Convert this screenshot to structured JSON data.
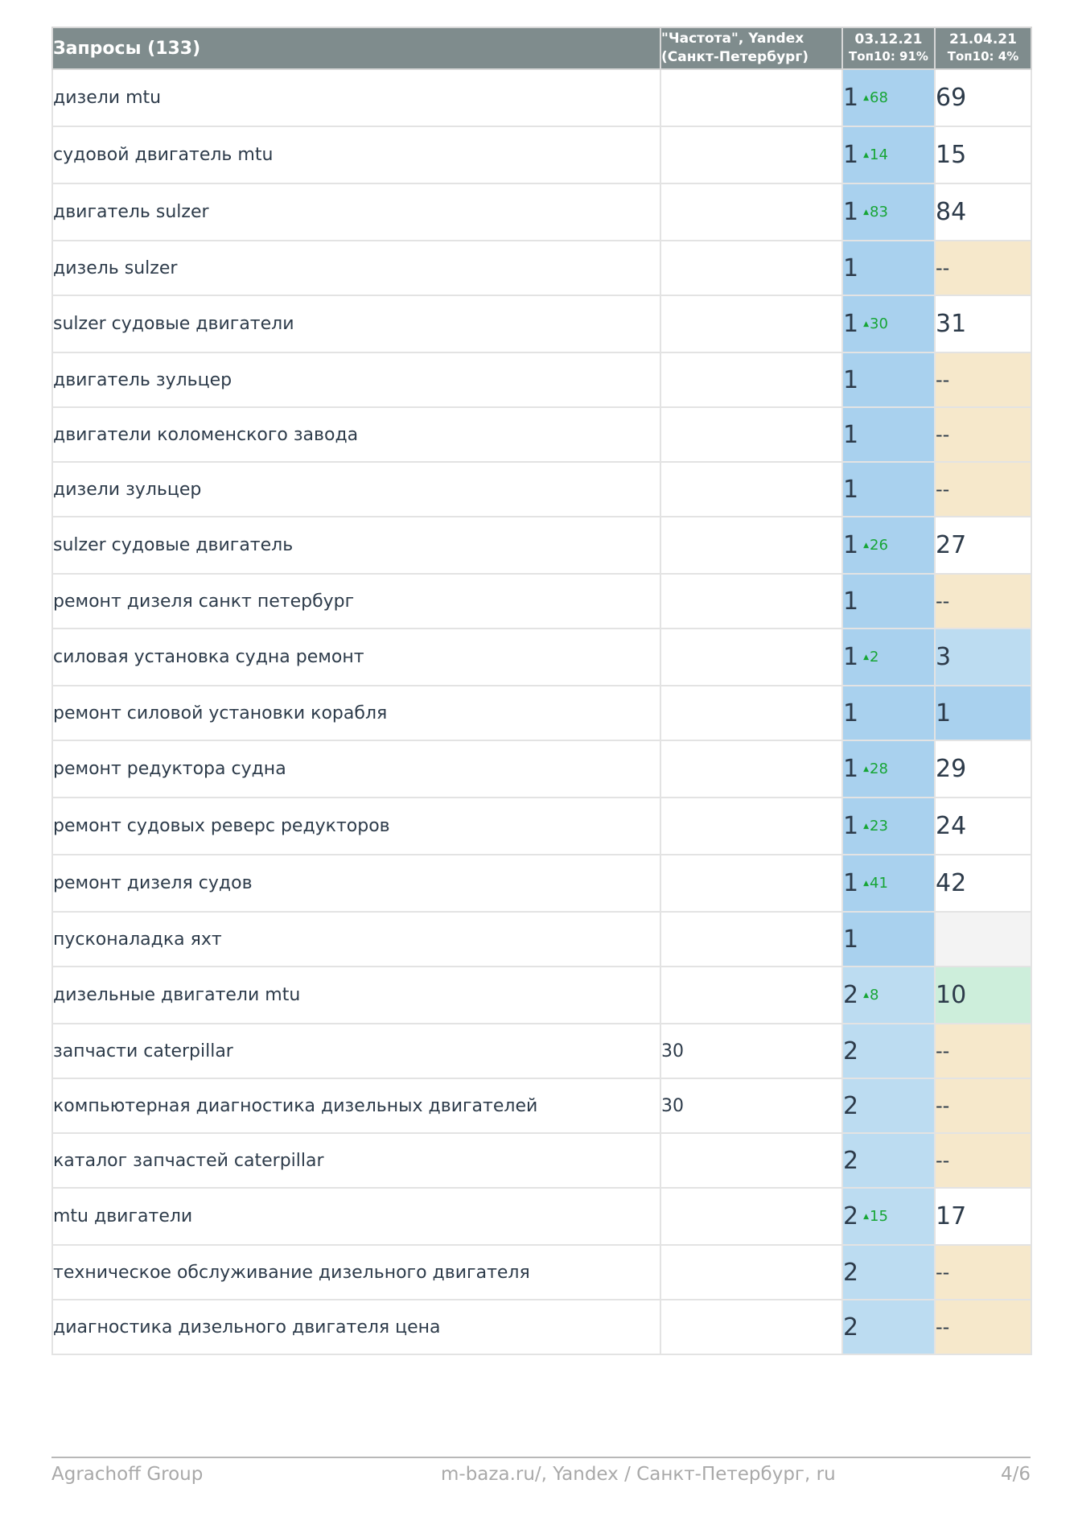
{
  "table": {
    "headers": {
      "query": "Запросы (133)",
      "freq_line1": "\"Частота\", Yandex",
      "freq_line2": "(Санкт-Петербург)",
      "date1": "03.12.21",
      "date1_sub": "Топ10: 91%",
      "date2": "21.04.21",
      "date2_sub": "Топ10: 4%"
    },
    "rows": [
      {
        "query": "дизели mtu",
        "freq": "",
        "pos1": "1",
        "delta": "68",
        "pos2": "69",
        "pos2_style": "white"
      },
      {
        "query": "судовой двигатель mtu",
        "freq": "",
        "pos1": "1",
        "delta": "14",
        "pos2": "15",
        "pos2_style": "white"
      },
      {
        "query": "двигатель sulzer",
        "freq": "",
        "pos1": "1",
        "delta": "83",
        "pos2": "84",
        "pos2_style": "white"
      },
      {
        "query": "дизель sulzer",
        "freq": "",
        "pos1": "1",
        "delta": "",
        "pos2": "--",
        "pos2_style": "cream"
      },
      {
        "query": "sulzer судовые двигатели",
        "freq": "",
        "pos1": "1",
        "delta": "30",
        "pos2": "31",
        "pos2_style": "white"
      },
      {
        "query": "двигатель зульцер",
        "freq": "",
        "pos1": "1",
        "delta": "",
        "pos2": "--",
        "pos2_style": "cream"
      },
      {
        "query": "двигатели коломенского завода",
        "freq": "",
        "pos1": "1",
        "delta": "",
        "pos2": "--",
        "pos2_style": "cream"
      },
      {
        "query": "дизели зульцер",
        "freq": "",
        "pos1": "1",
        "delta": "",
        "pos2": "--",
        "pos2_style": "cream"
      },
      {
        "query": "sulzer судовые двигатель",
        "freq": "",
        "pos1": "1",
        "delta": "26",
        "pos2": "27",
        "pos2_style": "white"
      },
      {
        "query": "ремонт дизеля санкт петербург",
        "freq": "",
        "pos1": "1",
        "delta": "",
        "pos2": "--",
        "pos2_style": "cream"
      },
      {
        "query": "силовая установка судна ремонт",
        "freq": "",
        "pos1": "1",
        "delta": "2",
        "pos2": "3",
        "pos2_style": "light"
      },
      {
        "query": "ремонт силовой установки корабля",
        "freq": "",
        "pos1": "1",
        "delta": "",
        "pos2": "1",
        "pos2_style": "dark"
      },
      {
        "query": "ремонт редуктора судна",
        "freq": "",
        "pos1": "1",
        "delta": "28",
        "pos2": "29",
        "pos2_style": "white"
      },
      {
        "query": "ремонт судовых реверс редукторов",
        "freq": "",
        "pos1": "1",
        "delta": "23",
        "pos2": "24",
        "pos2_style": "white"
      },
      {
        "query": "ремонт дизеля судов",
        "freq": "",
        "pos1": "1",
        "delta": "41",
        "pos2": "42",
        "pos2_style": "white"
      },
      {
        "query": "пусконаладка яхт",
        "freq": "",
        "pos1": "1",
        "delta": "",
        "pos2": "",
        "pos2_style": "grey"
      },
      {
        "query": "дизельные двигатели mtu",
        "freq": "",
        "pos1": "2",
        "delta": "8",
        "pos2": "10",
        "pos2_style": "green"
      },
      {
        "query": "запчасти caterpillar",
        "freq": "30",
        "pos1": "2",
        "delta": "",
        "pos2": "--",
        "pos2_style": "cream"
      },
      {
        "query": "компьютерная диагностика дизельных двигателей",
        "freq": "30",
        "pos1": "2",
        "delta": "",
        "pos2": "--",
        "pos2_style": "cream"
      },
      {
        "query": "каталог запчастей caterpillar",
        "freq": "",
        "pos1": "2",
        "delta": "",
        "pos2": "--",
        "pos2_style": "cream"
      },
      {
        "query": "mtu двигатели",
        "freq": "",
        "pos1": "2",
        "delta": "15",
        "pos2": "17",
        "pos2_style": "white"
      },
      {
        "query": "техническое обслуживание дизельного двигателя",
        "freq": "",
        "pos1": "2",
        "delta": "",
        "pos2": "--",
        "pos2_style": "cream"
      },
      {
        "query": "диагностика дизельного двигателя цена",
        "freq": "",
        "pos1": "2",
        "delta": "",
        "pos2": "--",
        "pos2_style": "cream"
      }
    ]
  },
  "footer": {
    "left": "Agrachoff Group",
    "center": "m-baza.ru/, Yandex / Санкт-Петербург, ru",
    "right": "4/6"
  }
}
